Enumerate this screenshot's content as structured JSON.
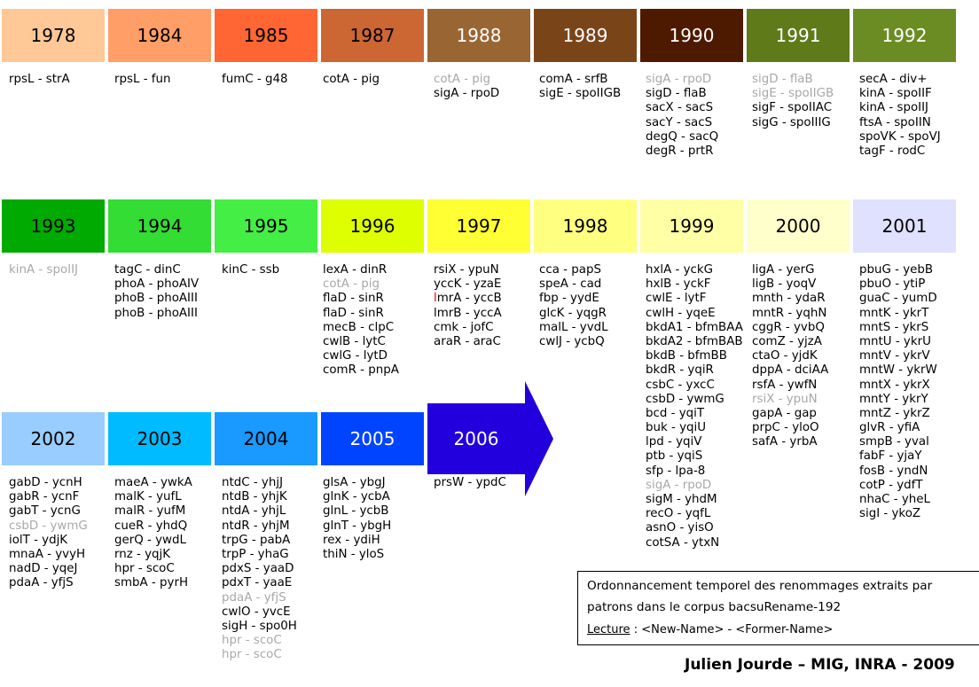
{
  "years": [
    {
      "label": "1978",
      "bg": "#ffc896",
      "fg": "#000000",
      "items": [
        {
          "t": "rpsL - strA"
        }
      ]
    },
    {
      "label": "1984",
      "bg": "#ff9e66",
      "fg": "#000000",
      "items": [
        {
          "t": "rpsL - fun"
        }
      ]
    },
    {
      "label": "1985",
      "bg": "#ff6633",
      "fg": "#000000",
      "items": [
        {
          "t": "fumC - g48"
        }
      ]
    },
    {
      "label": "1987",
      "bg": "#cc6633",
      "fg": "#000000",
      "items": [
        {
          "t": "cotA - pig"
        }
      ]
    },
    {
      "label": "1988",
      "bg": "#996633",
      "fg": "#ffffff",
      "items": [
        {
          "t": "cotA - pig",
          "m": true
        },
        {
          "t": "sigA - rpoD"
        }
      ]
    },
    {
      "label": "1989",
      "bg": "#7a4419",
      "fg": "#ffffff",
      "items": [
        {
          "t": "comA - srfB"
        },
        {
          "t": "sigE - spoIIGB"
        }
      ]
    },
    {
      "label": "1990",
      "bg": "#4d1a00",
      "fg": "#ffffff",
      "items": [
        {
          "t": "sigA - rpoD",
          "m": true
        },
        {
          "t": "sigD - flaB"
        },
        {
          "t": "sacX - sacS"
        },
        {
          "t": "sacY - sacS"
        },
        {
          "t": "degQ - sacQ"
        },
        {
          "t": "degR - prtR"
        }
      ]
    },
    {
      "label": "1991",
      "bg": "#5f7a19",
      "fg": "#ffffff",
      "items": [
        {
          "t": "sigD - flaB",
          "m": true
        },
        {
          "t": "sigE - spoIIGB",
          "m": true
        },
        {
          "t": "sigF - spoIIAC"
        },
        {
          "t": "sigG - spoIIIG"
        }
      ]
    },
    {
      "label": "1992",
      "bg": "#6b8c23",
      "fg": "#ffffff",
      "items": [
        {
          "t": "secA - div+"
        },
        {
          "t": "kinA - spoIIF"
        },
        {
          "t": "kinA - spoIIJ"
        },
        {
          "t": "ftsA - spoIIN"
        },
        {
          "t": "spoVK - spoVJ"
        },
        {
          "t": "tagF - rodC"
        }
      ]
    },
    {
      "label": "1993",
      "bg": "#00aa00",
      "fg": "#000000",
      "items": [
        {
          "t": "kinA - spoIIJ",
          "m": true
        }
      ]
    },
    {
      "label": "1994",
      "bg": "#33dd33",
      "fg": "#000000",
      "items": [
        {
          "t": "tagC - dinC"
        },
        {
          "t": "phoA - phoAIV"
        },
        {
          "t": "phoB - phoAIII"
        },
        {
          "t": "phoB - phoAIII"
        }
      ]
    },
    {
      "label": "1995",
      "bg": "#44ee44",
      "fg": "#000000",
      "items": [
        {
          "t": "kinC - ssb"
        }
      ]
    },
    {
      "label": "1996",
      "bg": "#ddff00",
      "fg": "#000000",
      "items": [
        {
          "t": "lexA - dinR"
        },
        {
          "t": "cotA - pig",
          "m": true
        },
        {
          "t": "flaD - sinR"
        },
        {
          "t": "flaD - sinR"
        },
        {
          "t": "mecB - clpC"
        },
        {
          "t": "cwlB - lytC"
        },
        {
          "t": "cwlG - lytD"
        },
        {
          "t": "comR - pnpA"
        }
      ]
    },
    {
      "label": "1997",
      "bg": "#ffff33",
      "fg": "#000000",
      "items": [
        {
          "t": "rsiX - ypuN"
        },
        {
          "t": "yccK - yzaE"
        },
        {
          "t": "lmrA - yccB",
          "mark": true
        },
        {
          "t": "lmrB - yccA"
        },
        {
          "t": "cmk - jofC"
        },
        {
          "t": "araR - araC"
        }
      ]
    },
    {
      "label": "1998",
      "bg": "#ffff80",
      "fg": "#000000",
      "items": [
        {
          "t": "cca - papS"
        },
        {
          "t": "speA - cad"
        },
        {
          "t": "fbp - yydE"
        },
        {
          "t": "glcK - yqgR"
        },
        {
          "t": "malL - yvdL"
        },
        {
          "t": "cwlJ - ycbQ"
        }
      ]
    },
    {
      "label": "1999",
      "bg": "#ffffa6",
      "fg": "#000000",
      "items": [
        {
          "t": "hxlA - yckG"
        },
        {
          "t": "hxlB - yckF"
        },
        {
          "t": "cwlE - lytF"
        },
        {
          "t": "cwlH - yqeE"
        },
        {
          "t": "bkdA1 - bfmBAA"
        },
        {
          "t": "bkdA2 - bfmBAB"
        },
        {
          "t": "bkdB - bfmBB"
        },
        {
          "t": "bkdR - yqiR"
        },
        {
          "t": "csbC - yxcC"
        },
        {
          "t": "csbD - ywmG"
        },
        {
          "t": "bcd - yqiT"
        },
        {
          "t": "buk - yqiU"
        },
        {
          "t": "lpd - yqiV"
        },
        {
          "t": "ptb - yqiS"
        },
        {
          "t": "sfp - lpa-8"
        },
        {
          "t": "sigA - rpoD",
          "m": true
        },
        {
          "t": "sigM - yhdM"
        },
        {
          "t": "recO - yqfL"
        },
        {
          "t": "asnO - yisO"
        },
        {
          "t": "cotSA - ytxN"
        }
      ]
    },
    {
      "label": "2000",
      "bg": "#ffffcc",
      "fg": "#000000",
      "items": [
        {
          "t": "ligA - yerG"
        },
        {
          "t": "ligB - yoqV"
        },
        {
          "t": "mnth - ydaR"
        },
        {
          "t": "mntR - yqhN"
        },
        {
          "t": "cggR - yvbQ"
        },
        {
          "t": "comZ - yjzA"
        },
        {
          "t": "ctaO - yjdK"
        },
        {
          "t": "dppA - dciAA"
        },
        {
          "t": "rsfA - ywfN"
        },
        {
          "t": "rsiX - ypuN",
          "m": true
        },
        {
          "t": "gapA - gap"
        },
        {
          "t": "prpC - yloO"
        },
        {
          "t": "safA - yrbA"
        }
      ]
    },
    {
      "label": "2001",
      "bg": "#e0e0ff",
      "fg": "#000000",
      "items": [
        {
          "t": "pbuG - yebB"
        },
        {
          "t": "pbuO - ytiP"
        },
        {
          "t": "guaC - yumD"
        },
        {
          "t": "mntK - ykrT"
        },
        {
          "t": "mntS - ykrS"
        },
        {
          "t": "mntU - ykrU"
        },
        {
          "t": "mntV - ykrV"
        },
        {
          "t": "mntW - ykrW"
        },
        {
          "t": "mntX - ykrX"
        },
        {
          "t": "mntY - ykrY"
        },
        {
          "t": "mntZ - ykrZ"
        },
        {
          "t": "glvR - yfiA"
        },
        {
          "t": "smpB - yval"
        },
        {
          "t": "fabF - yjaY"
        },
        {
          "t": "fosB - yndN"
        },
        {
          "t": "cotP - ydfT"
        },
        {
          "t": "nhaC - yheL"
        },
        {
          "t": "sigI - ykoZ"
        }
      ]
    },
    {
      "label": "2002",
      "bg": "#99ccff",
      "fg": "#000000",
      "items": [
        {
          "t": "gabD - ycnH"
        },
        {
          "t": "gabR - ycnF"
        },
        {
          "t": "gabT - ycnG"
        },
        {
          "t": "csbD - ywmG",
          "m": true
        },
        {
          "t": "iolT - ydjK"
        },
        {
          "t": "mnaA - yvyH"
        },
        {
          "t": "nadD - yqeJ"
        },
        {
          "t": "pdaA - yfjS"
        }
      ]
    },
    {
      "label": "2003",
      "bg": "#00bbff",
      "fg": "#000000",
      "items": [
        {
          "t": "maeA - ywkA"
        },
        {
          "t": "malK - yufL"
        },
        {
          "t": "malR - yufM"
        },
        {
          "t": "cueR - yhdQ"
        },
        {
          "t": "gerQ - ywdL"
        },
        {
          "t": "rnz - yqjK"
        },
        {
          "t": "hpr - scoC"
        },
        {
          "t": "smbA - pyrH"
        }
      ]
    },
    {
      "label": "2004",
      "bg": "#1a99ff",
      "fg": "#000000",
      "items": [
        {
          "t": "ntdC - yhjJ"
        },
        {
          "t": "ntdB - yhjK"
        },
        {
          "t": "ntdA - yhjL"
        },
        {
          "t": "ntdR - yhjM"
        },
        {
          "t": "trpG - pabA"
        },
        {
          "t": "trpP - yhaG"
        },
        {
          "t": "pdxS - yaaD"
        },
        {
          "t": "pdxT - yaaE"
        },
        {
          "t": "pdaA - yfjS",
          "m": true
        },
        {
          "t": "cwlO - yvcE"
        },
        {
          "t": "sigH - spo0H"
        },
        {
          "t": "hpr - scoC",
          "m": true
        },
        {
          "t": "hpr - scoC",
          "m": true
        }
      ]
    },
    {
      "label": "2005",
      "bg": "#0044ff",
      "fg": "#ffffff",
      "items": [
        {
          "t": "glsA - ybgJ"
        },
        {
          "t": "glnK - ycbA"
        },
        {
          "t": "glnL - ycbB"
        },
        {
          "t": "glnT - ybgH"
        },
        {
          "t": "rex - ydiH"
        },
        {
          "t": "thiN - yloS"
        }
      ]
    },
    {
      "label": "2006",
      "bg": "#2200dd",
      "fg": "#ffffff",
      "items": [
        {
          "t": "prsW - ypdC"
        }
      ]
    }
  ],
  "caption": {
    "line1": "Ordonnancement temporel des renommages extraits par",
    "line2": "patrons dans le corpus bacsuRename-192",
    "legend_word": "Lecture",
    "legend_rest": " : <New-Name> - <Former-Name>"
  },
  "author": "Julien Jourde – MIG, INRA - 2009"
}
